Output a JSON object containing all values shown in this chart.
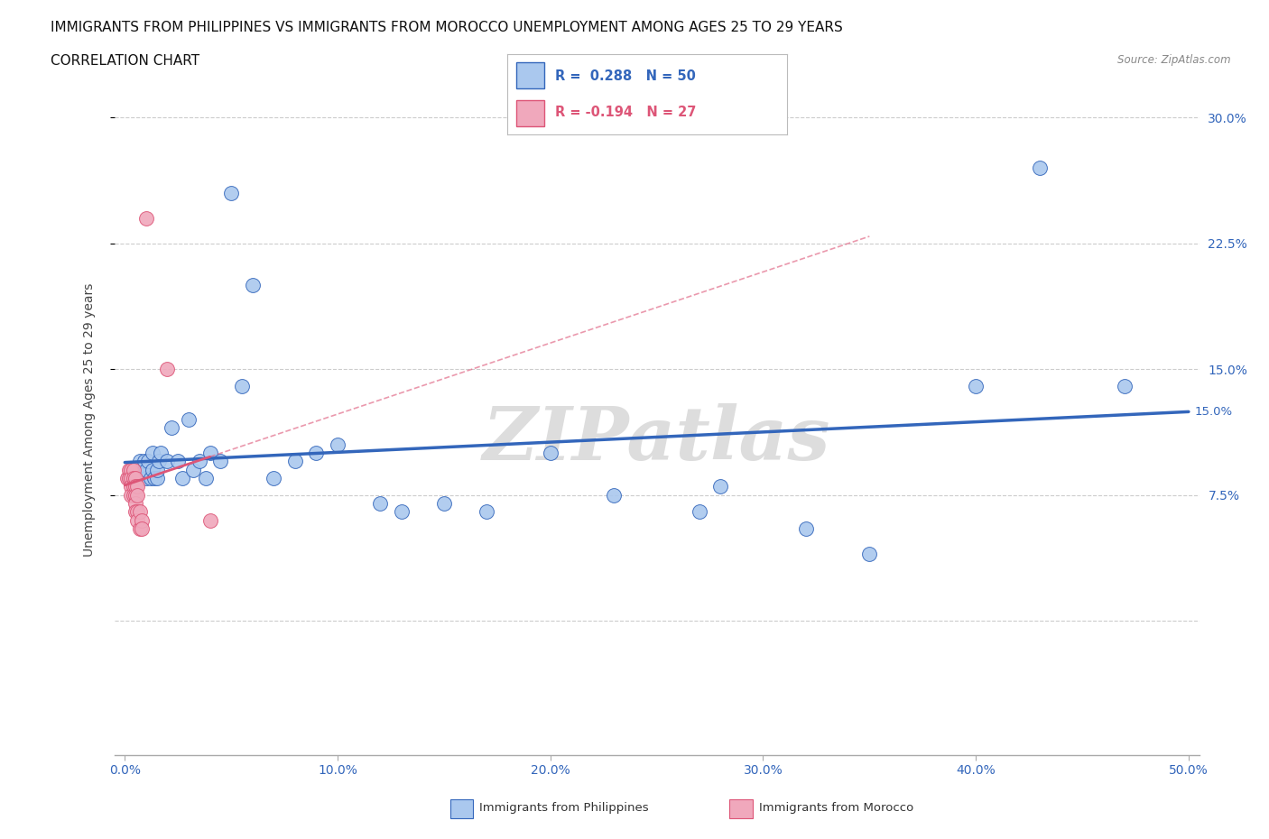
{
  "title_line1": "IMMIGRANTS FROM PHILIPPINES VS IMMIGRANTS FROM MOROCCO UNEMPLOYMENT AMONG AGES 25 TO 29 YEARS",
  "title_line2": "CORRELATION CHART",
  "source": "Source: ZipAtlas.com",
  "ylabel": "Unemployment Among Ages 25 to 29 years",
  "xlim": [
    -0.005,
    0.505
  ],
  "ylim": [
    -0.08,
    0.32
  ],
  "xticks": [
    0.0,
    0.1,
    0.2,
    0.3,
    0.4,
    0.5
  ],
  "xtick_labels": [
    "0.0%",
    "10.0%",
    "20.0%",
    "30.0%",
    "40.0%",
    "50.0%"
  ],
  "yticks": [
    0.075,
    0.15,
    0.225,
    0.3
  ],
  "ytick_labels": [
    "7.5%",
    "15.0%",
    "22.5%",
    "30.0%"
  ],
  "yline_ticks": [
    0.0,
    0.075,
    0.15,
    0.225,
    0.3
  ],
  "watermark": "ZIPatlas",
  "philippines_color": "#aac8ee",
  "morocco_color": "#f0a8bc",
  "philippines_line_color": "#3366bb",
  "morocco_line_color": "#dd5577",
  "background_color": "#ffffff",
  "grid_color": "#cccccc",
  "title_fontsize": 11,
  "axis_fontsize": 10,
  "tick_fontsize": 10,
  "philippines_x": [
    0.002,
    0.003,
    0.005,
    0.006,
    0.007,
    0.007,
    0.008,
    0.009,
    0.009,
    0.01,
    0.01,
    0.011,
    0.012,
    0.013,
    0.013,
    0.014,
    0.015,
    0.015,
    0.016,
    0.017,
    0.02,
    0.022,
    0.025,
    0.027,
    0.03,
    0.032,
    0.035,
    0.038,
    0.04,
    0.045,
    0.05,
    0.055,
    0.06,
    0.07,
    0.08,
    0.09,
    0.1,
    0.12,
    0.13,
    0.15,
    0.17,
    0.2,
    0.23,
    0.27,
    0.28,
    0.32,
    0.35,
    0.4,
    0.43,
    0.47
  ],
  "philippines_y": [
    0.085,
    0.09,
    0.085,
    0.09,
    0.09,
    0.095,
    0.085,
    0.09,
    0.095,
    0.085,
    0.09,
    0.095,
    0.085,
    0.09,
    0.1,
    0.085,
    0.085,
    0.09,
    0.095,
    0.1,
    0.095,
    0.115,
    0.095,
    0.085,
    0.12,
    0.09,
    0.095,
    0.085,
    0.1,
    0.095,
    0.255,
    0.14,
    0.2,
    0.085,
    0.095,
    0.1,
    0.105,
    0.07,
    0.065,
    0.07,
    0.065,
    0.1,
    0.075,
    0.065,
    0.08,
    0.055,
    0.04,
    0.14,
    0.27,
    0.14
  ],
  "morocco_x": [
    0.001,
    0.002,
    0.002,
    0.003,
    0.003,
    0.003,
    0.003,
    0.004,
    0.004,
    0.004,
    0.004,
    0.005,
    0.005,
    0.005,
    0.005,
    0.005,
    0.006,
    0.006,
    0.006,
    0.006,
    0.007,
    0.007,
    0.008,
    0.008,
    0.01,
    0.02,
    0.04
  ],
  "morocco_y": [
    0.085,
    0.09,
    0.085,
    0.09,
    0.085,
    0.08,
    0.075,
    0.09,
    0.085,
    0.08,
    0.075,
    0.085,
    0.08,
    0.075,
    0.07,
    0.065,
    0.08,
    0.075,
    0.065,
    0.06,
    0.065,
    0.055,
    0.06,
    0.055,
    0.24,
    0.15,
    0.06
  ]
}
